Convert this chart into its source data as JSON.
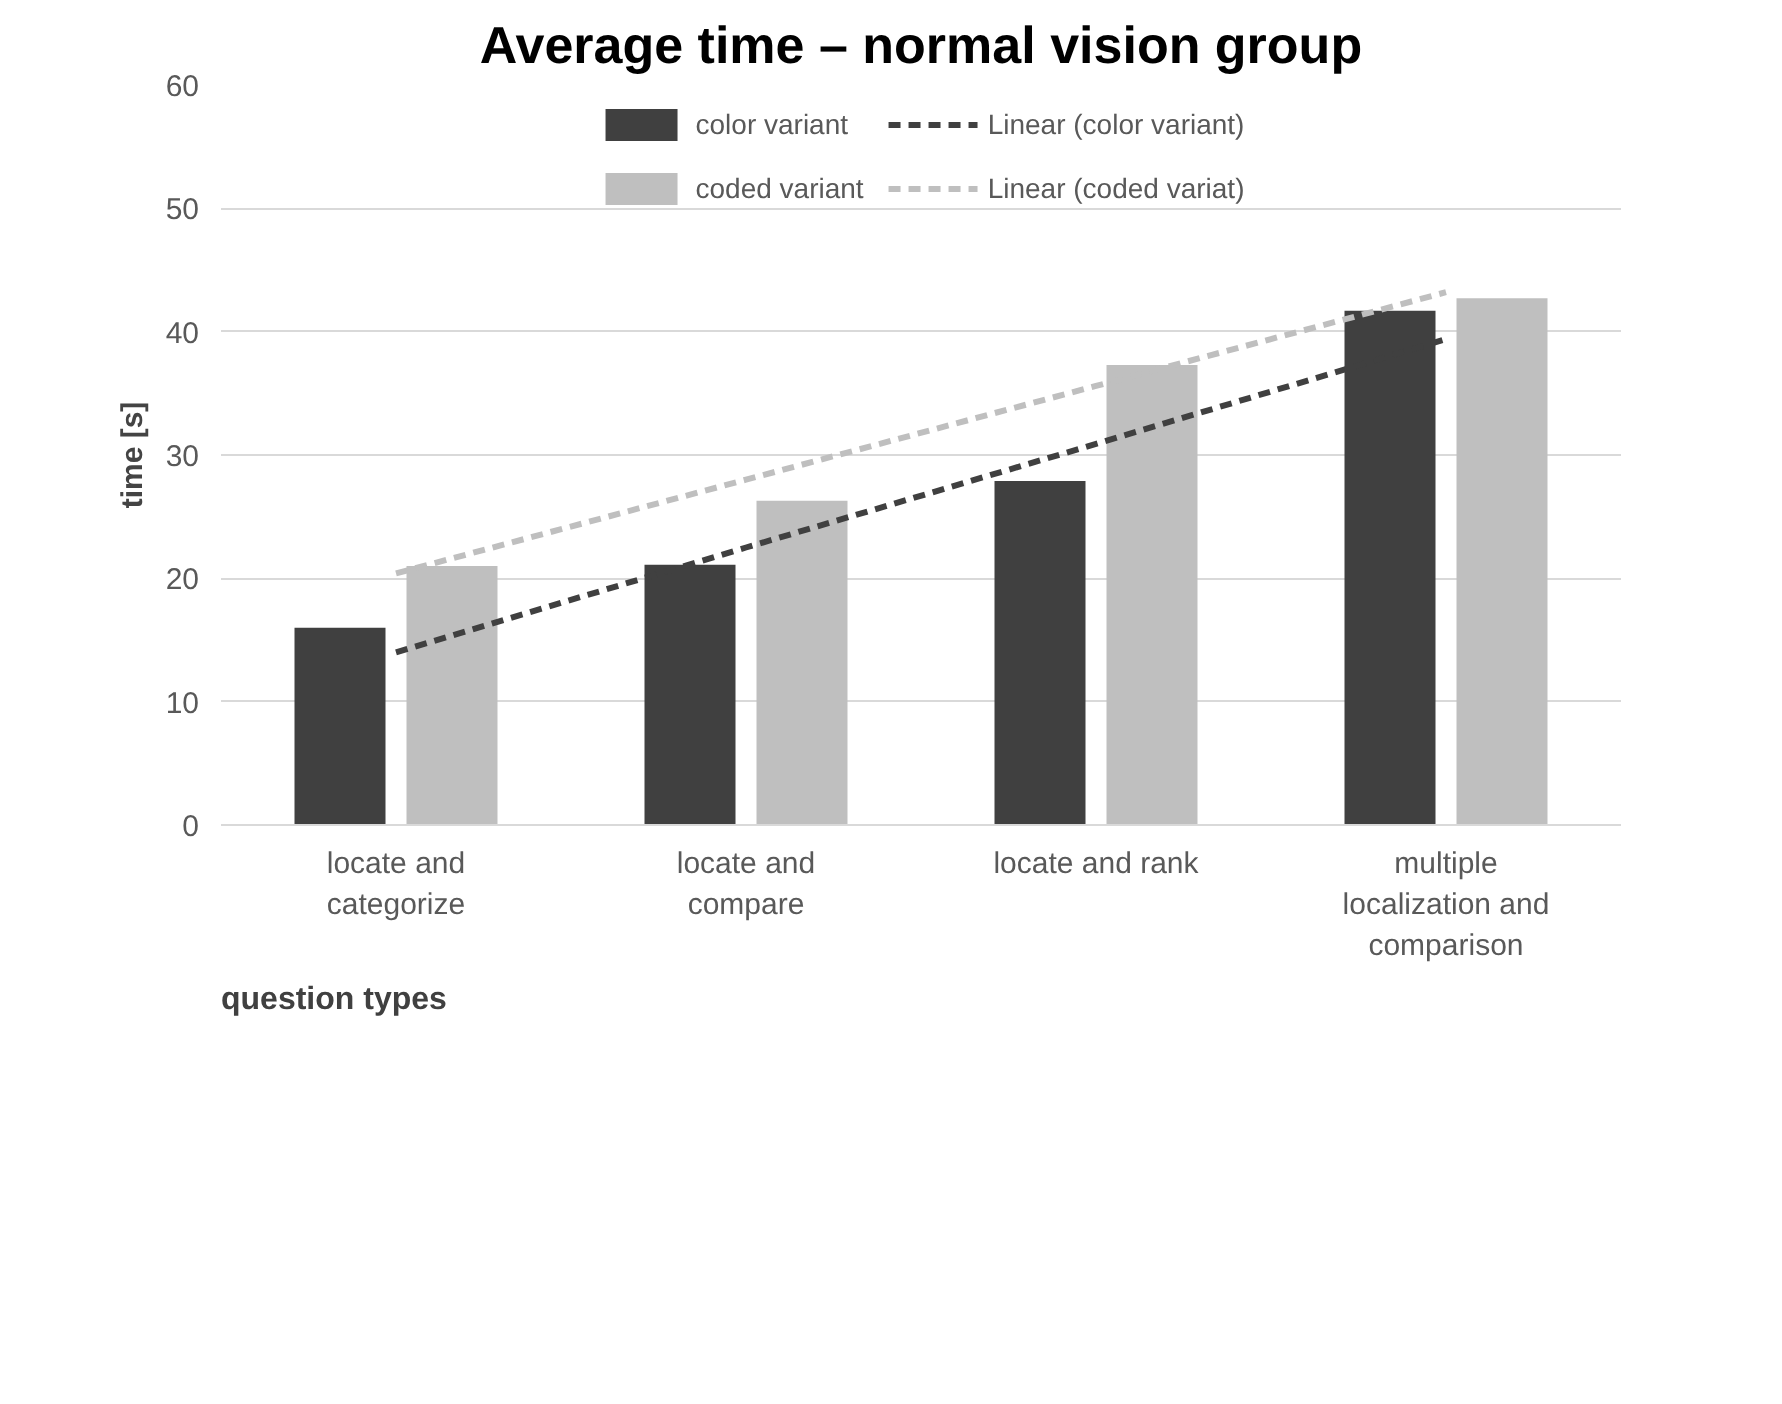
{
  "chart_data": {
    "type": "bar",
    "title": "Average time – normal vision group",
    "xlabel": "question types",
    "ylabel": "time [s]",
    "categories": [
      "locate and categorize",
      "locate and compare",
      "locate and rank",
      "multiple localization and comparison"
    ],
    "series": [
      {
        "name": "color variant",
        "color": "#404040",
        "values": [
          16.0,
          21.1,
          27.9,
          41.7
        ]
      },
      {
        "name": "coded variant",
        "color": "#bfbfbf",
        "values": [
          21.0,
          26.3,
          37.3,
          42.7
        ]
      },
      {
        "name": "Linear (color variant)",
        "type": "line",
        "line_style": "dashed",
        "color": "#404040",
        "values": [
          14.0,
          22.5,
          30.9,
          39.4
        ]
      },
      {
        "name": "Linear (coded variat)",
        "type": "line",
        "line_style": "dashed",
        "color": "#bfbfbf",
        "values": [
          20.4,
          28.0,
          35.6,
          43.2
        ]
      }
    ],
    "ylim": [
      0,
      60
    ],
    "yticks": [
      0,
      10,
      20,
      30,
      40,
      50,
      60
    ],
    "grid": "y",
    "legend": "top"
  }
}
